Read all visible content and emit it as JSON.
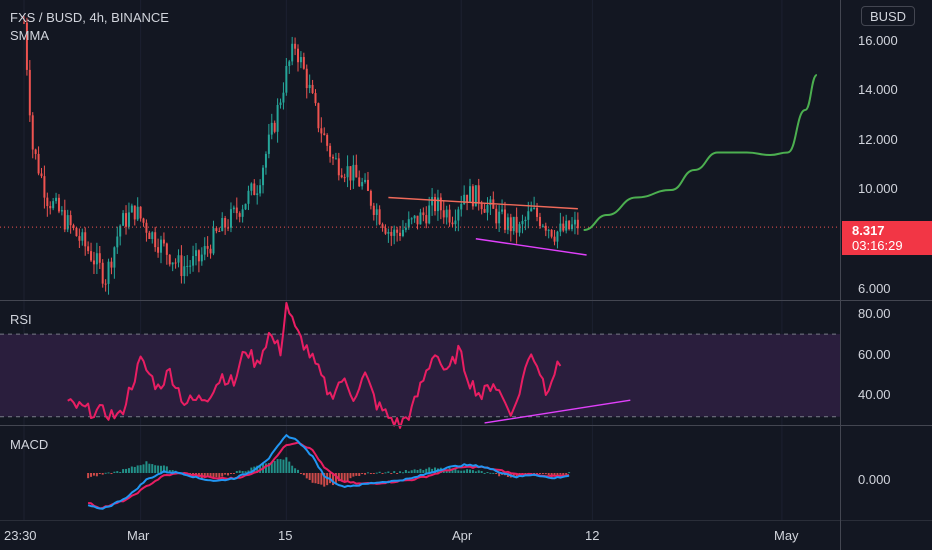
{
  "header": {
    "symbol_line": "FXS / BUSD, 4h, BINANCE",
    "indicator": "SMMA"
  },
  "currency_button": "BUSD",
  "last_price": {
    "price": "8.317",
    "countdown": "03:16:29"
  },
  "colors": {
    "background": "#131722",
    "bull": "#26a69a",
    "bear": "#ef5350",
    "rsi_line": "#e91e63",
    "rsi_band": "#2a1e3d",
    "macd_line": "#2196f3",
    "signal_line": "#e91e63",
    "trend_pink": "#e040fb",
    "trend_orange": "#f06a5a",
    "projection": "#4caf50",
    "price_tag": "#f23645"
  },
  "chart_data": [
    {
      "type": "candlestick",
      "pane": "price",
      "y_ticks": [
        "16.000",
        "14.000",
        "12.000",
        "10.000",
        "6.000"
      ],
      "ylim": [
        5.4,
        17.4
      ],
      "x_ticks": [
        "23:30",
        "Mar",
        "15",
        "Apr",
        "12",
        "May"
      ],
      "last_price": 8.317,
      "price_path": [
        [
          0,
          16.5
        ],
        [
          3,
          11.5
        ],
        [
          8,
          9.5
        ],
        [
          14,
          8.6
        ],
        [
          22,
          7.4
        ],
        [
          28,
          6.3
        ],
        [
          33,
          8.4
        ],
        [
          38,
          9.0
        ],
        [
          44,
          8.0
        ],
        [
          50,
          7.2
        ],
        [
          54,
          6.7
        ],
        [
          60,
          7.0
        ],
        [
          66,
          8.0
        ],
        [
          72,
          8.8
        ],
        [
          80,
          10.0
        ],
        [
          86,
          12.5
        ],
        [
          90,
          14.5
        ],
        [
          93,
          15.6
        ],
        [
          97,
          14.2
        ],
        [
          101,
          12.5
        ],
        [
          106,
          11.0
        ],
        [
          111,
          10.6
        ],
        [
          116,
          10.0
        ],
        [
          121,
          9.0
        ],
        [
          126,
          8.0
        ],
        [
          131,
          8.3
        ],
        [
          136,
          8.7
        ],
        [
          141,
          9.2
        ],
        [
          147,
          8.8
        ],
        [
          151,
          9.7
        ],
        [
          156,
          9.5
        ],
        [
          161,
          8.9
        ],
        [
          165,
          8.5
        ],
        [
          170,
          8.2
        ],
        [
          174,
          8.9
        ],
        [
          178,
          8.6
        ],
        [
          182,
          8.1
        ],
        [
          186,
          8.2
        ],
        [
          190,
          8.4
        ]
      ],
      "trendlines": [
        {
          "name": "resistance",
          "from": [
            125,
            9.5
          ],
          "to": [
            190,
            9.05
          ],
          "color": "#f06a5a"
        },
        {
          "name": "support",
          "from": [
            155,
            7.85
          ],
          "to": [
            193,
            7.2
          ],
          "color": "#e040fb"
        }
      ],
      "projection": [
        [
          192,
          8.2
        ],
        [
          200,
          8.8
        ],
        [
          210,
          9.5
        ],
        [
          222,
          9.8
        ],
        [
          230,
          10.6
        ],
        [
          238,
          11.3
        ],
        [
          248,
          11.3
        ],
        [
          256,
          11.2
        ],
        [
          262,
          11.3
        ],
        [
          268,
          13.0
        ],
        [
          272,
          14.4
        ]
      ]
    },
    {
      "type": "line",
      "pane": "RSI",
      "title": "RSI",
      "y_ticks": [
        "80.00",
        "60.00",
        "40.00"
      ],
      "ylim": [
        26,
        86
      ],
      "band": [
        30,
        70
      ],
      "rsi_path": [
        [
          15,
          36
        ],
        [
          18,
          35
        ],
        [
          22,
          33
        ],
        [
          28,
          32
        ],
        [
          33,
          30
        ],
        [
          36,
          42
        ],
        [
          40,
          57
        ],
        [
          46,
          44
        ],
        [
          50,
          52
        ],
        [
          55,
          37
        ],
        [
          59,
          38
        ],
        [
          63,
          40
        ],
        [
          68,
          50
        ],
        [
          72,
          46
        ],
        [
          76,
          63
        ],
        [
          80,
          55
        ],
        [
          84,
          70
        ],
        [
          88,
          62
        ],
        [
          90,
          85
        ],
        [
          93,
          72
        ],
        [
          97,
          63
        ],
        [
          101,
          52
        ],
        [
          105,
          40
        ],
        [
          109,
          48
        ],
        [
          113,
          40
        ],
        [
          117,
          50
        ],
        [
          121,
          36
        ],
        [
          125,
          30
        ],
        [
          129,
          26
        ],
        [
          133,
          33
        ],
        [
          137,
          48
        ],
        [
          141,
          62
        ],
        [
          145,
          50
        ],
        [
          149,
          62
        ],
        [
          153,
          47
        ],
        [
          157,
          40
        ],
        [
          161,
          47
        ],
        [
          165,
          37
        ],
        [
          168,
          32
        ],
        [
          171,
          48
        ],
        [
          174,
          62
        ],
        [
          177,
          52
        ],
        [
          179,
          43
        ],
        [
          182,
          52
        ],
        [
          184,
          55
        ]
      ],
      "trendline": {
        "from": [
          158,
          27
        ],
        "to": [
          208,
          38
        ],
        "color": "#e040fb"
      }
    },
    {
      "type": "line",
      "pane": "MACD",
      "title": "MACD",
      "y_ticks": [
        "0.000"
      ],
      "ylim": [
        -1.75,
        1.75
      ],
      "macd_path": [
        [
          22,
          -1.2
        ],
        [
          26,
          -1.35
        ],
        [
          30,
          -1.2
        ],
        [
          36,
          -0.85
        ],
        [
          42,
          -0.25
        ],
        [
          48,
          0.05
        ],
        [
          54,
          0.0
        ],
        [
          60,
          -0.2
        ],
        [
          66,
          -0.3
        ],
        [
          72,
          -0.2
        ],
        [
          78,
          0.05
        ],
        [
          84,
          0.55
        ],
        [
          90,
          1.4
        ],
        [
          94,
          1.2
        ],
        [
          99,
          0.6
        ],
        [
          103,
          -0.1
        ],
        [
          109,
          -0.5
        ],
        [
          115,
          -0.45
        ],
        [
          121,
          -0.35
        ],
        [
          127,
          -0.3
        ],
        [
          133,
          -0.2
        ],
        [
          139,
          0.0
        ],
        [
          145,
          0.2
        ],
        [
          151,
          0.3
        ],
        [
          157,
          0.25
        ],
        [
          163,
          0.05
        ],
        [
          169,
          -0.15
        ],
        [
          175,
          -0.05
        ],
        [
          181,
          -0.2
        ],
        [
          187,
          -0.1
        ]
      ],
      "signal_path": [
        [
          22,
          -1.1
        ],
        [
          26,
          -1.3
        ],
        [
          30,
          -1.2
        ],
        [
          36,
          -0.95
        ],
        [
          42,
          -0.5
        ],
        [
          48,
          -0.1
        ],
        [
          54,
          0.0
        ],
        [
          60,
          -0.1
        ],
        [
          66,
          -0.2
        ],
        [
          72,
          -0.2
        ],
        [
          78,
          -0.05
        ],
        [
          84,
          0.3
        ],
        [
          90,
          1.05
        ],
        [
          94,
          1.15
        ],
        [
          99,
          0.85
        ],
        [
          103,
          0.2
        ],
        [
          109,
          -0.3
        ],
        [
          115,
          -0.4
        ],
        [
          121,
          -0.38
        ],
        [
          127,
          -0.32
        ],
        [
          133,
          -0.25
        ],
        [
          139,
          -0.1
        ],
        [
          145,
          0.1
        ],
        [
          151,
          0.22
        ],
        [
          157,
          0.22
        ],
        [
          163,
          0.1
        ],
        [
          169,
          -0.05
        ],
        [
          175,
          -0.05
        ],
        [
          181,
          -0.12
        ],
        [
          187,
          -0.1
        ]
      ]
    }
  ]
}
